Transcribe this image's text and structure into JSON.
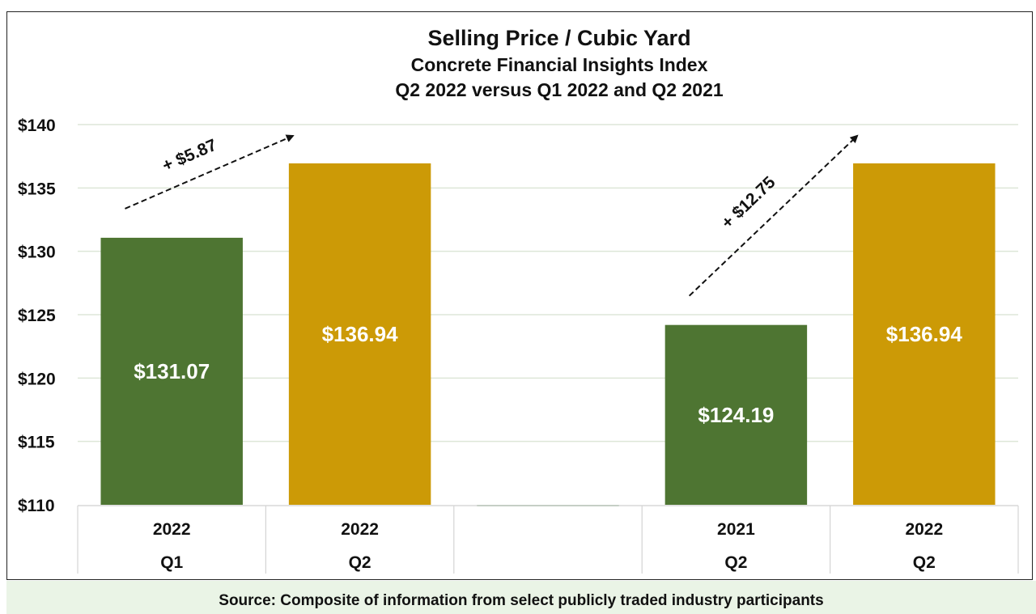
{
  "chart_data": {
    "type": "bar",
    "title": "Selling Price / Cubic Yard",
    "subtitle_lines": [
      "Concrete Financial Insights Index",
      "Q2 2022 versus Q1 2022 and Q2 2021"
    ],
    "xlabel": "",
    "ylabel": "",
    "ylim": [
      110,
      140
    ],
    "y_ticks": [
      110,
      115,
      120,
      125,
      130,
      135,
      140
    ],
    "y_tick_labels": [
      "$110",
      "$115",
      "$120",
      "$125",
      "$130",
      "$135",
      "$140"
    ],
    "grid": true,
    "legend": "none",
    "categories": [
      {
        "year": "2022",
        "quarter": "Q1"
      },
      {
        "year": "2022",
        "quarter": "Q2"
      },
      {
        "year": "",
        "quarter": ""
      },
      {
        "year": "2021",
        "quarter": "Q2"
      },
      {
        "year": "2022",
        "quarter": "Q2"
      }
    ],
    "values": [
      131.07,
      136.94,
      null,
      124.19,
      136.94
    ],
    "data_labels": [
      "$131.07",
      "$136.94",
      "",
      "$124.19",
      "$136.94"
    ],
    "bar_colors": [
      "#4e7532",
      "#cc9a06",
      "#8fb08a",
      "#4e7532",
      "#cc9a06"
    ],
    "annotations": [
      {
        "text": "+ $5.87",
        "from_category": 0,
        "to_category": 1,
        "style": "dashed-arrow"
      },
      {
        "text": "+ $12.75",
        "from_category": 3,
        "to_category": 4,
        "style": "dashed-arrow"
      }
    ]
  },
  "footer": {
    "source": "Source: Composite of information from select publicly traded industry participants"
  }
}
